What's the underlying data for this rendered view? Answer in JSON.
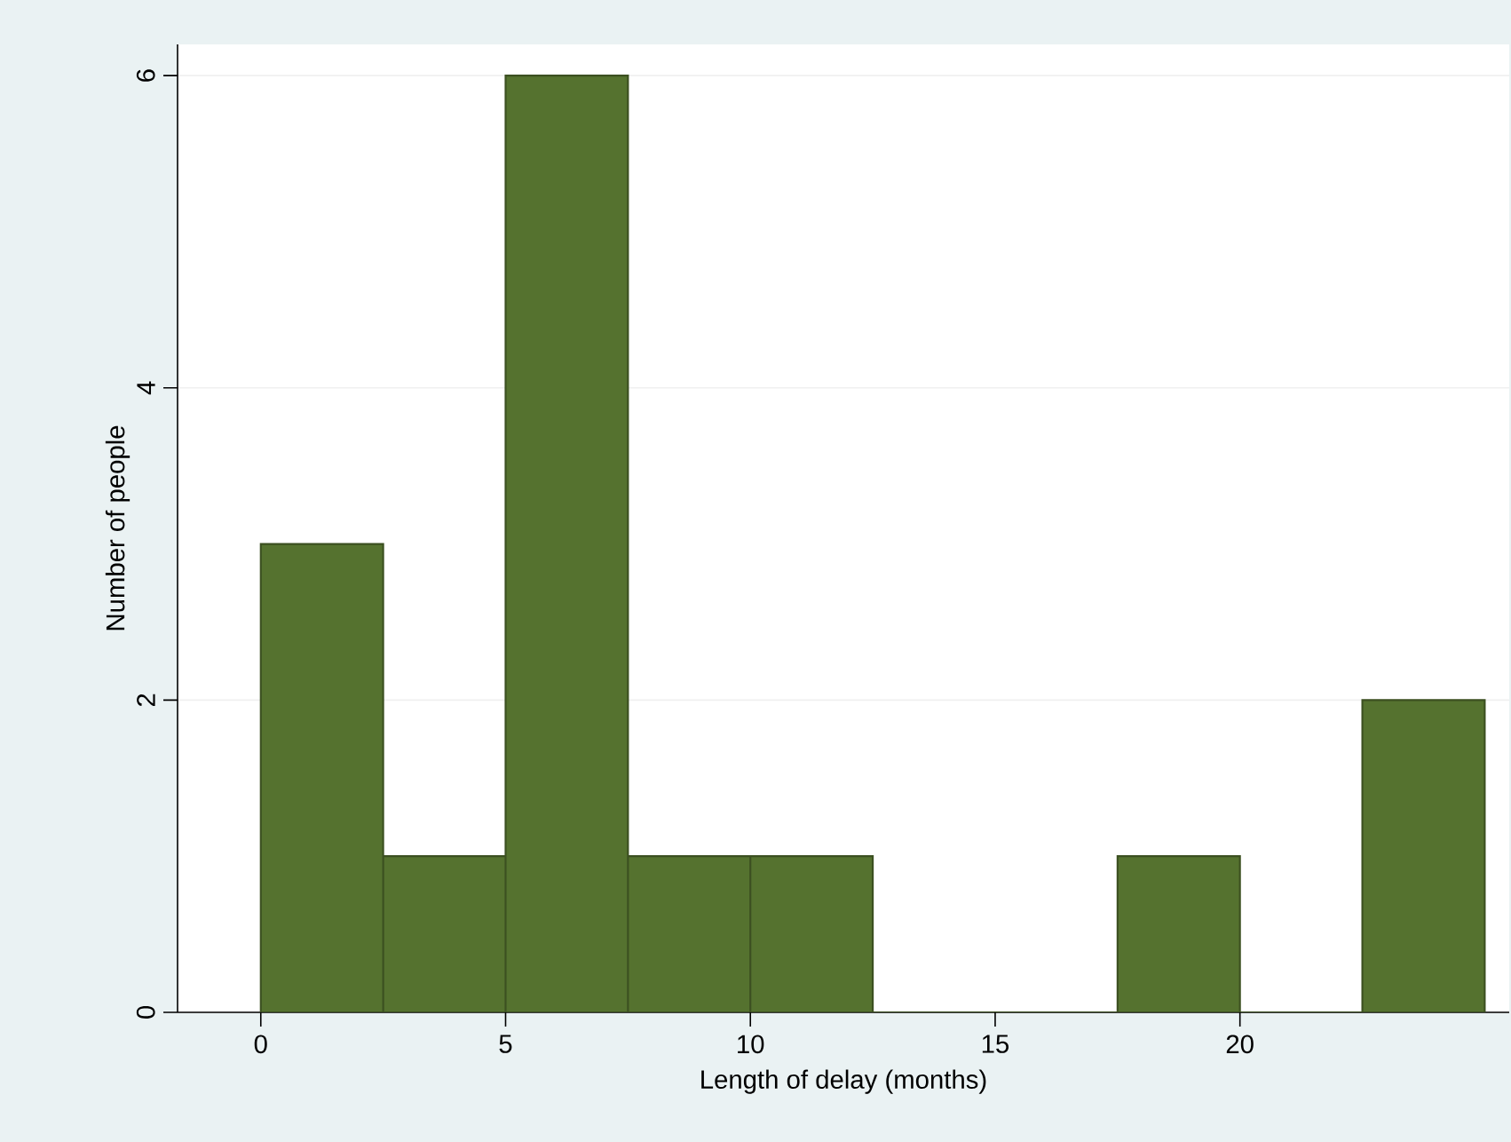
{
  "chart_data": {
    "type": "histogram",
    "xlabel": "Length of delay (months)",
    "ylabel": "Number of people",
    "bins": [
      0,
      2.5,
      5,
      7.5,
      10,
      12.5,
      15,
      17.5,
      20,
      22.5,
      25
    ],
    "values": [
      3,
      1,
      6,
      1,
      1,
      0,
      0,
      1,
      0,
      2
    ],
    "color": "#55722f",
    "xlim": [
      -1.7,
      25.5
    ],
    "xticks": [
      0,
      5,
      10,
      15,
      20
    ],
    "ylim": [
      0,
      6.2
    ],
    "yticks": [
      0,
      2,
      4,
      6
    ],
    "grid": "y"
  }
}
